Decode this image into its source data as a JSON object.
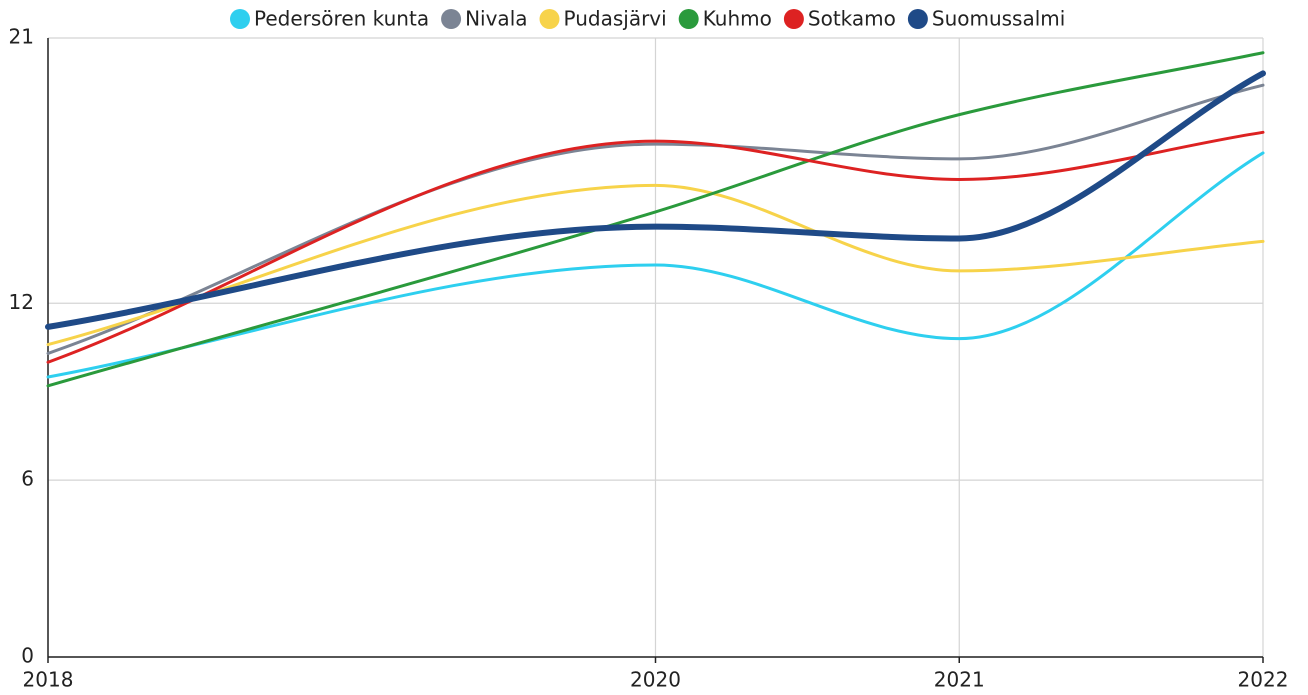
{
  "chart_data": {
    "type": "line",
    "x": [
      2018,
      2020,
      2021,
      2022
    ],
    "xlim": [
      2018,
      2022
    ],
    "xticks": [
      2018,
      2020,
      2021,
      2022
    ],
    "ylim": [
      0,
      21
    ],
    "yticks": [
      0,
      6,
      12,
      21
    ],
    "grid": true,
    "legend": "top",
    "series": [
      {
        "name": "Pedersören kunta",
        "color": "#2ecfef",
        "values": [
          9.5,
          13.3,
          10.8,
          17.1
        ]
      },
      {
        "name": "Nivala",
        "color": "#7b8494",
        "values": [
          10.3,
          17.4,
          16.9,
          19.4
        ]
      },
      {
        "name": "Pudasjärvi",
        "color": "#f7d34a",
        "values": [
          10.6,
          16.0,
          13.1,
          14.1
        ]
      },
      {
        "name": "Kuhmo",
        "color": "#2a9a3c",
        "values": [
          9.2,
          15.1,
          18.4,
          20.5
        ]
      },
      {
        "name": "Sotkamo",
        "color": "#dd2222",
        "values": [
          10.0,
          17.5,
          16.2,
          17.8
        ]
      },
      {
        "name": "Suomussalmi",
        "color": "#1f4a87",
        "values": [
          11.2,
          14.6,
          14.2,
          19.8
        ]
      }
    ]
  }
}
